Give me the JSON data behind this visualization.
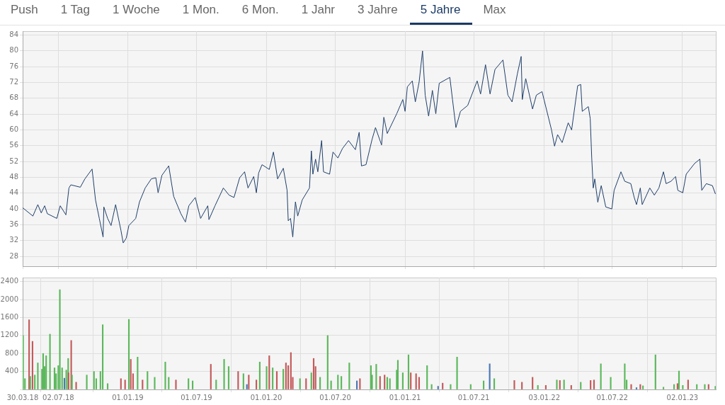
{
  "chart_data": [
    {
      "type": "line",
      "annotations": [
        "Push",
        "1 Tag",
        "1 Woche",
        "1 Mon.",
        "6 Mon.",
        "1 Jahr",
        "3 Jahre",
        "5 Jahre",
        "Max"
      ],
      "color": "#1f3f6b",
      "grid": true,
      "tick_labels": "y",
      "xlim": [
        "2018-03-30",
        "2023-03-31"
      ],
      "ylim": [
        25.5,
        85
      ],
      "xticks": [
        {
          "value": "2018-03-30",
          "label": null
        },
        {
          "value": "2018-07-02",
          "label": null
        },
        {
          "value": "2019-01-01",
          "label": null
        },
        {
          "value": "2019-07-01",
          "label": null
        },
        {
          "value": "2020-01-01",
          "label": null
        },
        {
          "value": "2020-07-01",
          "label": null
        },
        {
          "value": "2021-01-01",
          "label": null
        },
        {
          "value": "2021-07-01",
          "label": null
        },
        {
          "value": "2022-01-03",
          "label": null
        },
        {
          "value": "2022-07-01",
          "label": null
        },
        {
          "value": "2023-01-02",
          "label": null
        }
      ],
      "yticks": [
        28,
        32,
        36,
        40,
        44,
        48,
        52,
        56,
        60,
        64,
        68,
        72,
        76,
        80,
        84
      ],
      "x": [
        "2018-03-30",
        "2018-04-26",
        "2018-05-09",
        "2018-05-18",
        "2018-05-27",
        "2018-06-03",
        "2018-06-28",
        "2018-07-07",
        "2018-07-22",
        "2018-07-30",
        "2018-08-04",
        "2018-08-29",
        "2018-09-10",
        "2018-09-29",
        "2018-10-08",
        "2018-10-18",
        "2018-10-28",
        "2018-10-30",
        "2018-11-09",
        "2018-11-18",
        "2018-11-30",
        "2018-12-14",
        "2018-12-20",
        "2018-12-28",
        "2019-01-04",
        "2019-01-22",
        "2019-02-01",
        "2019-02-16",
        "2019-03-04",
        "2019-03-16",
        "2019-03-22",
        "2019-04-01",
        "2019-04-19",
        "2019-05-02",
        "2019-05-21",
        "2019-06-02",
        "2019-06-11",
        "2019-06-28",
        "2019-07-12",
        "2019-07-31",
        "2019-08-03",
        "2019-08-19",
        "2019-09-10",
        "2019-09-25",
        "2019-10-08",
        "2019-10-23",
        "2019-11-05",
        "2019-11-14",
        "2019-11-29",
        "2019-12-06",
        "2019-12-12",
        "2019-12-21",
        "2020-01-09",
        "2020-01-20",
        "2020-01-31",
        "2020-02-15",
        "2020-02-25",
        "2020-02-28",
        "2020-03-05",
        "2020-03-11",
        "2020-03-18",
        "2020-03-24",
        "2020-04-05",
        "2020-04-24",
        "2020-04-29",
        "2020-05-03",
        "2020-05-10",
        "2020-05-16",
        "2020-05-26",
        "2020-05-31",
        "2020-06-16",
        "2020-06-25",
        "2020-07-08",
        "2020-07-20",
        "2020-08-05",
        "2020-08-23",
        "2020-09-02",
        "2020-09-08",
        "2020-09-20",
        "2020-10-06",
        "2020-10-15",
        "2020-10-31",
        "2020-11-06",
        "2020-11-15",
        "2020-12-10",
        "2020-12-26",
        "2021-01-01",
        "2021-01-07",
        "2021-01-20",
        "2021-01-28",
        "2021-02-07",
        "2021-02-16",
        "2021-02-23",
        "2021-03-04",
        "2021-03-14",
        "2021-03-23",
        "2021-04-01",
        "2021-04-29",
        "2021-05-06",
        "2021-05-15",
        "2021-05-27",
        "2021-06-15",
        "2021-07-10",
        "2021-07-19",
        "2021-08-01",
        "2021-08-13",
        "2021-08-26",
        "2021-09-16",
        "2021-09-29",
        "2021-10-10",
        "2021-10-24",
        "2021-11-03",
        "2021-11-06",
        "2021-11-15",
        "2021-12-03",
        "2021-12-13",
        "2021-12-28",
        "2022-01-13",
        "2022-01-22",
        "2022-01-30",
        "2022-02-07",
        "2022-02-19",
        "2022-03-07",
        "2022-03-16",
        "2022-04-01",
        "2022-04-09",
        "2022-04-13",
        "2022-04-29",
        "2022-05-04",
        "2022-05-08",
        "2022-05-12",
        "2022-05-16",
        "2022-05-24",
        "2022-06-02",
        "2022-06-14",
        "2022-06-30",
        "2022-07-06",
        "2022-07-24",
        "2022-08-03",
        "2022-08-19",
        "2022-08-28",
        "2022-09-03",
        "2022-09-13",
        "2022-09-18",
        "2022-10-08",
        "2022-10-20",
        "2022-11-01",
        "2022-11-13",
        "2022-11-20",
        "2022-12-03",
        "2022-12-15",
        "2022-12-21",
        "2023-01-03",
        "2023-01-12",
        "2023-02-03",
        "2023-02-17",
        "2023-02-22",
        "2023-03-06",
        "2023-03-22",
        "2023-03-30"
      ],
      "values": [
        40.3,
        38.2,
        41.1,
        39.0,
        40.8,
        38.8,
        37.6,
        40.8,
        38.5,
        45.3,
        46.1,
        45.5,
        47.6,
        50.1,
        42.3,
        37.6,
        32.9,
        40.5,
        37.6,
        35.8,
        41.1,
        34.6,
        31.4,
        32.6,
        35.8,
        37.6,
        41.8,
        45.3,
        47.6,
        47.9,
        44.1,
        48.5,
        50.9,
        43.2,
        38.8,
        36.7,
        40.8,
        42.9,
        37.6,
        40.8,
        37.3,
        40.8,
        45.3,
        43.5,
        42.9,
        47.9,
        49.4,
        45.3,
        48.2,
        44.1,
        49.1,
        51.2,
        50.0,
        54.4,
        47.6,
        50.3,
        44.7,
        37.0,
        37.6,
        32.9,
        41.8,
        38.2,
        42.3,
        45.3,
        54.7,
        48.8,
        52.6,
        49.4,
        57.3,
        49.4,
        48.8,
        54.4,
        52.9,
        55.3,
        57.3,
        55.0,
        59.4,
        50.9,
        51.2,
        57.6,
        60.6,
        56.2,
        63.2,
        59.1,
        64.1,
        67.7,
        64.7,
        70.9,
        72.4,
        67.1,
        72.1,
        80.0,
        68.8,
        63.5,
        70.0,
        64.1,
        71.8,
        73.3,
        67.7,
        60.6,
        64.7,
        66.2,
        72.4,
        69.1,
        76.5,
        69.1,
        75.3,
        77.7,
        68.8,
        67.1,
        74.2,
        78.6,
        67.7,
        73.0,
        65.3,
        68.8,
        69.7,
        63.5,
        60.0,
        55.9,
        58.8,
        56.8,
        61.8,
        60.0,
        71.2,
        71.5,
        64.7,
        65.9,
        62.9,
        52.9,
        45.3,
        47.6,
        41.7,
        45.9,
        40.5,
        40.0,
        44.7,
        49.4,
        47.0,
        46.4,
        42.9,
        41.1,
        45.3,
        41.1,
        45.3,
        43.5,
        45.3,
        49.4,
        46.4,
        47.0,
        48.2,
        44.7,
        44.1,
        48.8,
        51.5,
        52.6,
        44.7,
        46.4,
        45.9,
        43.8
      ]
    },
    {
      "type": "bar",
      "grid": true,
      "xlim": [
        "2018-03-30",
        "2023-03-31"
      ],
      "ylim": [
        0,
        2490
      ],
      "xticks": [
        {
          "value": "2018-03-30",
          "label": "30.03.18"
        },
        {
          "value": "2018-07-02",
          "label": "02.07.18"
        },
        {
          "value": "2019-01-01",
          "label": "01.01.19"
        },
        {
          "value": "2019-07-01",
          "label": "01.07.19"
        },
        {
          "value": "2020-01-01",
          "label": "01.01.20"
        },
        {
          "value": "2020-07-01",
          "label": "01.07.20"
        },
        {
          "value": "2021-01-01",
          "label": "01.01.21"
        },
        {
          "value": "2021-07-01",
          "label": "01.07.21"
        },
        {
          "value": "2022-01-03",
          "label": "03.01.22"
        },
        {
          "value": "2022-07-01",
          "label": "01.07.22"
        },
        {
          "value": "2023-01-02",
          "label": "02.01.23"
        }
      ],
      "yticks": [
        {
          "value": 0,
          "label": null
        },
        400,
        800,
        1200,
        1600,
        2000,
        2400
      ],
      "x": [
        "2018-03-31",
        "2018-04-05",
        "2018-04-16",
        "2018-04-19",
        "2018-04-25",
        "2018-05-01",
        "2018-05-09",
        "2018-05-20",
        "2018-05-23",
        "2018-05-27",
        "2018-05-31",
        "2018-06-10",
        "2018-06-22",
        "2018-06-26",
        "2018-07-02",
        "2018-07-06",
        "2018-07-12",
        "2018-07-18",
        "2018-07-23",
        "2018-07-28",
        "2018-07-29",
        "2018-08-05",
        "2018-08-07",
        "2018-08-18",
        "2018-09-15",
        "2018-10-04",
        "2018-10-10",
        "2018-10-21",
        "2018-10-27",
        "2018-11-09",
        "2018-12-14",
        "2018-12-25",
        "2019-01-04",
        "2019-01-09",
        "2019-01-15",
        "2019-01-27",
        "2019-02-09",
        "2019-02-22",
        "2019-03-13",
        "2019-04-10",
        "2019-04-19",
        "2019-05-08",
        "2019-06-10",
        "2019-06-21",
        "2019-08-08",
        "2019-08-22",
        "2019-09-12",
        "2019-09-24",
        "2019-10-19",
        "2019-11-02",
        "2019-11-11",
        "2019-11-16",
        "2019-12-06",
        "2019-12-15",
        "2020-01-02",
        "2020-01-09",
        "2020-01-18",
        "2020-01-29",
        "2020-02-15",
        "2020-02-22",
        "2020-02-28",
        "2020-03-06",
        "2020-03-11",
        "2020-03-30",
        "2020-04-15",
        "2020-04-29",
        "2020-05-05",
        "2020-05-10",
        "2020-05-22",
        "2020-06-11",
        "2020-06-20",
        "2020-07-08",
        "2020-07-17",
        "2020-08-07",
        "2020-08-27",
        "2020-09-04",
        "2020-10-03",
        "2020-10-06",
        "2020-10-17",
        "2020-10-27",
        "2020-11-08",
        "2020-11-15",
        "2020-11-22",
        "2020-12-10",
        "2020-12-13",
        "2020-12-26",
        "2021-01-10",
        "2021-01-16",
        "2021-01-30",
        "2021-02-07",
        "2021-02-28",
        "2021-03-12",
        "2021-03-29",
        "2021-04-10",
        "2021-05-01",
        "2021-05-18",
        "2021-06-23",
        "2021-07-27",
        "2021-08-12",
        "2021-08-24",
        "2021-10-16",
        "2021-11-05",
        "2021-12-03",
        "2021-12-17",
        "2022-01-07",
        "2022-02-05",
        "2022-02-13",
        "2022-02-24",
        "2022-03-15",
        "2022-04-09",
        "2022-05-05",
        "2022-05-14",
        "2022-06-01",
        "2022-06-27",
        "2022-08-03",
        "2022-08-08",
        "2022-08-20",
        "2022-09-03",
        "2022-09-13",
        "2022-09-20",
        "2022-10-23",
        "2022-11-13",
        "2022-12-11",
        "2022-12-20",
        "2022-12-24",
        "2023-01-03",
        "2023-01-17",
        "2023-02-09",
        "2023-03-02",
        "2023-03-12",
        "2023-03-30"
      ],
      "values": [
        1200,
        240,
        1550,
        290,
        1070,
        320,
        590,
        450,
        800,
        510,
        750,
        1230,
        480,
        350,
        530,
        2220,
        480,
        250,
        430,
        690,
        370,
        1090,
        320,
        160,
        320,
        400,
        240,
        400,
        1440,
        130,
        240,
        210,
        1560,
        670,
        350,
        720,
        210,
        400,
        270,
        610,
        270,
        210,
        240,
        190,
        560,
        210,
        670,
        510,
        400,
        350,
        110,
        320,
        210,
        610,
        510,
        750,
        480,
        400,
        450,
        590,
        530,
        820,
        270,
        240,
        240,
        370,
        690,
        510,
        270,
        1200,
        190,
        320,
        290,
        590,
        190,
        240,
        530,
        320,
        560,
        290,
        320,
        270,
        240,
        430,
        650,
        370,
        770,
        370,
        350,
        270,
        530,
        110,
        70,
        140,
        110,
        720,
        110,
        190,
        570,
        240,
        200,
        160,
        270,
        90,
        90,
        210,
        200,
        210,
        90,
        160,
        200,
        210,
        570,
        270,
        570,
        210,
        110,
        40,
        110,
        80,
        770,
        50,
        110,
        130,
        410,
        90,
        210,
        110,
        110,
        110,
        70
      ],
      "colors": [
        "#5cb85c",
        "#5cb85c",
        "#c45a5a",
        "#5cb85c",
        "#c45a5a",
        "#5cb85c",
        "#5cb85c",
        "#5cb85c",
        "#5cb85c",
        "#5cb85c",
        "#5cb85c",
        "#5cb85c",
        "#5cb85c",
        "#5cb85c",
        "#5cb85c",
        "#5cb85c",
        "#5cb85c",
        "#4a78b5",
        "#5cb85c",
        "#5cb85c",
        "#c45a5a",
        "#c45a5a",
        "#5cb85c",
        "#c45a5a",
        "#5cb85c",
        "#5cb85c",
        "#5cb85c",
        "#5cb85c",
        "#5cb85c",
        "#5cb85c",
        "#c45a5a",
        "#c45a5a",
        "#5cb85c",
        "#c45a5a",
        "#c45a5a",
        "#5cb85c",
        "#c45a5a",
        "#5cb85c",
        "#5cb85c",
        "#5cb85c",
        "#5cb85c",
        "#c45a5a",
        "#5cb85c",
        "#5cb85c",
        "#c45a5a",
        "#5cb85c",
        "#5cb85c",
        "#5cb85c",
        "#c45a5a",
        "#5cb85c",
        "#4a78b5",
        "#c45a5a",
        "#c45a5a",
        "#5cb85c",
        "#5cb85c",
        "#c45a5a",
        "#5cb85c",
        "#c45a5a",
        "#5cb85c",
        "#c45a5a",
        "#c45a5a",
        "#c45a5a",
        "#c45a5a",
        "#5cb85c",
        "#c45a5a",
        "#5cb85c",
        "#c45a5a",
        "#c45a5a",
        "#5cb85c",
        "#5cb85c",
        "#5cb85c",
        "#5cb85c",
        "#5cb85c",
        "#5cb85c",
        "#4a78b5",
        "#c45a5a",
        "#5cb85c",
        "#5cb85c",
        "#5cb85c",
        "#c45a5a",
        "#c45a5a",
        "#5cb85c",
        "#5cb85c",
        "#5cb85c",
        "#5cb85c",
        "#5cb85c",
        "#5cb85c",
        "#c45a5a",
        "#c45a5a",
        "#c45a5a",
        "#5cb85c",
        "#5cb85c",
        "#4a78b5",
        "#c45a5a",
        "#5cb85c",
        "#5cb85c",
        "#5cb85c",
        "#5cb85c",
        "#4a78b5",
        "#5cb85c",
        "#c45a5a",
        "#c45a5a",
        "#c45a5a",
        "#5cb85c",
        "#c45a5a",
        "#5cb85c",
        "#c45a5a",
        "#5cb85c",
        "#c45a5a",
        "#5cb85c",
        "#c45a5a",
        "#c45a5a",
        "#5cb85c",
        "#5cb85c",
        "#5cb85c",
        "#5cb85c",
        "#c45a5a",
        "#4a78b5",
        "#c45a5a",
        "#5cb85c",
        "#5cb85c",
        "#5cb85c",
        "#5cb85c",
        "#c45a5a",
        "#5cb85c",
        "#5cb85c",
        "#c45a5a",
        "#5cb85c",
        "#5cb85c",
        "#c45a5a",
        "#5cb85c"
      ]
    }
  ]
}
